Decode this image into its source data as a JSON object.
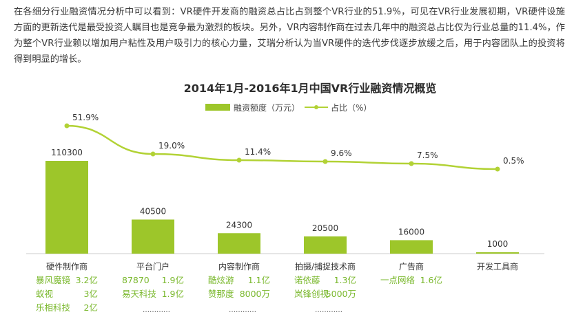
{
  "intro_text": "在各细分行业融资情况分析中可以看到：VR硬件开发商的融资总占比占到整个VR行业的51.9%，可见在VR行业发展初期，VR硬件设施方面的更新迭代是最受投资人瞩目也是竞争最为激烈的板块。另外，VR内容制作商在过去几年中的融资总占比仅为行业总量的11.4%，作为整个VR行业赖以增加用户粘性及用户吸引力的核心力量，艾瑞分析认为当VR硬件的迭代步伐逐步放缓之后，用于内容团队上的投资将得到明显的增长。",
  "colors": {
    "bar": "#9dc62a",
    "line": "#b2d235",
    "company": "#7ab82d"
  },
  "chart_data": {
    "type": "bar+line",
    "title": "2014年1月-2016年1月中国VR行业融资情况概览",
    "legend_position": "top",
    "categories": [
      "硬件制作商",
      "平台门户",
      "内容制作商",
      "拍摄/捕捉技术商",
      "广告商",
      "开发工具商"
    ],
    "series": [
      {
        "name": "融资额度（万元）",
        "kind": "bar",
        "values": [
          110300,
          40500,
          24300,
          20500,
          16000,
          1000
        ],
        "labels": [
          "110300",
          "40500",
          "24300",
          "20500",
          "16000",
          "1000"
        ]
      },
      {
        "name": "占比（%）",
        "kind": "line",
        "values": [
          51.9,
          19.0,
          11.4,
          9.6,
          7.5,
          0.5
        ],
        "labels": [
          "51.9%",
          "19.0%",
          "11.4%",
          "9.6%",
          "7.5%",
          "0.5%"
        ]
      }
    ],
    "companies": [
      [
        [
          "暴风魔镜",
          "3.2亿"
        ],
        [
          "蚁视",
          "3亿"
        ],
        [
          "乐相科技",
          "2亿"
        ]
      ],
      [
        [
          "87870",
          "1.9亿"
        ],
        [
          "易天科技",
          "1.9亿"
        ],
        [
          "…………",
          ""
        ]
      ],
      [
        [
          "酷炫游",
          "1.1亿"
        ],
        [
          "赞那度",
          "8000万"
        ],
        [
          "…………",
          ""
        ]
      ],
      [
        [
          "诺依藤",
          "1.3亿"
        ],
        [
          "岚锋创视",
          "5000万"
        ],
        [
          "…………",
          ""
        ]
      ],
      [
        [
          "一点网络",
          "1.6亿"
        ]
      ],
      []
    ]
  }
}
